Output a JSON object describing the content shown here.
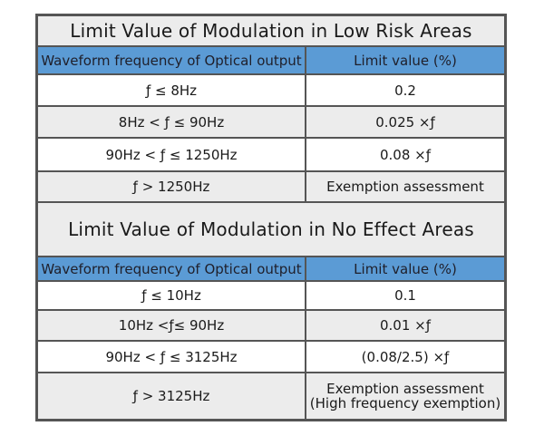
{
  "sections": [
    {
      "title": "Limit Value of Modulation in Low Risk Areas",
      "header": {
        "col1": "Waveform frequency of Optical output",
        "col2": "Limit value (%)"
      },
      "rows": [
        {
          "freq": "ƒ ≤ 8Hz",
          "limit": "0.2"
        },
        {
          "freq": "8Hz < ƒ ≤ 90Hz",
          "limit": "0.025 ×ƒ"
        },
        {
          "freq": "90Hz < ƒ ≤ 1250Hz",
          "limit": "0.08 ×ƒ"
        },
        {
          "freq": "ƒ > 1250Hz",
          "limit": "Exemption assessment"
        }
      ]
    },
    {
      "title": "Limit Value of Modulation in No Effect Areas",
      "header": {
        "col1": "Waveform frequency of Optical output",
        "col2": "Limit value (%)"
      },
      "rows": [
        {
          "freq": "ƒ ≤ 10Hz",
          "limit": "0.1"
        },
        {
          "freq": "10Hz <ƒ≤ 90Hz",
          "limit": "0.01 ×ƒ"
        },
        {
          "freq": "90Hz < ƒ ≤ 3125Hz",
          "limit": "(0.08/2.5) ×ƒ"
        },
        {
          "freq": "ƒ > 3125Hz",
          "limit": "Exemption assessment\n(High frequency exemption)"
        }
      ]
    }
  ]
}
